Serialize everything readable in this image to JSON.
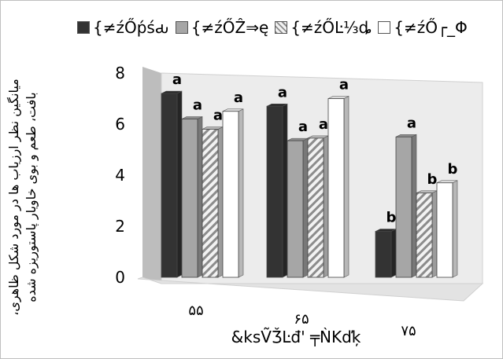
{
  "legend": {
    "items": [
      {
        "label": "{≠źŐṕśԃ",
        "color": "#333333",
        "pattern": "solid"
      },
      {
        "label": "{≠źŐẐ⇒ę",
        "color": "#a6a6a6",
        "pattern": "solid"
      },
      {
        "label": "{≠źŐĿ⅓ȡ",
        "color": "#d9d9d9",
        "pattern": "hatch"
      },
      {
        "label": "{≠źŐ┌_Φ",
        "color": "#ffffff",
        "pattern": "solid"
      }
    ]
  },
  "chart_data": {
    "type": "bar",
    "ylabel": "میانگین نظر ارزیاب ها در مورد شکل ظاهری، بافت، طعم و بوی خاویار پاستوریزه شده",
    "xlabel": "&ksṼǮĿđ' ╤ǸΚďķ",
    "categories": [
      "۵۵",
      "۶۵",
      "۷۵"
    ],
    "ylim": [
      0,
      8
    ],
    "yticks": [
      "0",
      "2",
      "4",
      "6",
      "8"
    ],
    "series": [
      {
        "name": "{≠źŐṕśԃ",
        "values": [
          7.2,
          6.7,
          1.8
        ],
        "labels": [
          "a",
          "a",
          "b"
        ]
      },
      {
        "name": "{≠źŐẐ⇒ę",
        "values": [
          6.2,
          5.35,
          5.5
        ],
        "labels": [
          "a",
          "a",
          "a"
        ]
      },
      {
        "name": "{≠źŐĿ⅓ȡ",
        "values": [
          5.8,
          5.45,
          3.3
        ],
        "labels": [
          "a",
          "a",
          "b"
        ]
      },
      {
        "name": "{≠źŐ┌_Φ",
        "values": [
          6.5,
          7.0,
          3.7
        ],
        "labels": [
          "a",
          "a",
          "b"
        ]
      }
    ],
    "grid": false,
    "legend_position": "top"
  }
}
